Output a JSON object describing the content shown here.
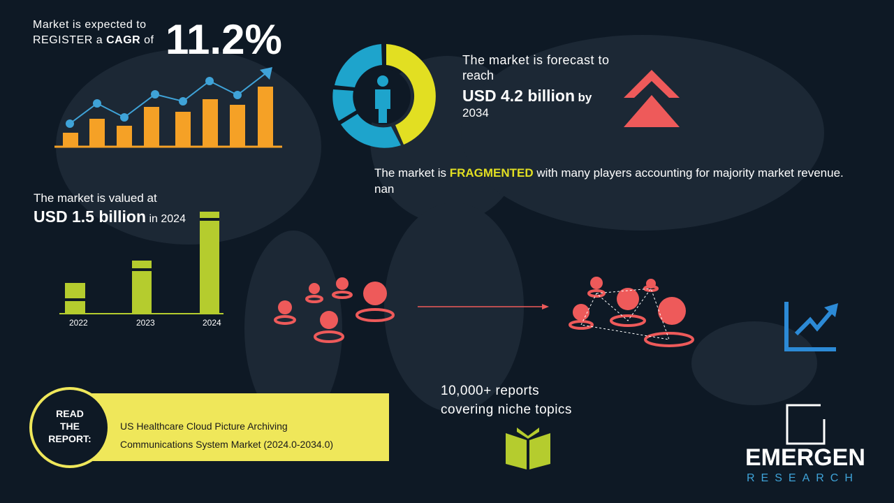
{
  "cagr": {
    "line1": "Market is expected to",
    "line2_a": "REGISTER a",
    "line2_b": "CAGR",
    "line2_c": "of",
    "value": "11.2%"
  },
  "forecast": {
    "line1": "The market is forecast to",
    "line2": "reach",
    "amount": "USD 4.2 billion",
    "by": "by",
    "year": "2034"
  },
  "fragmented": {
    "a": "The market is",
    "b": "FRAGMENTED",
    "c": "with many players accounting for majority market revenue. nan"
  },
  "valued": {
    "line1": "The market is valued at",
    "amount": "USD 1.5 billion",
    "year": "in 2024",
    "years": [
      "2022",
      "2023",
      "2024"
    ]
  },
  "report": {
    "read": "READ THE REPORT:",
    "title_line1": "US Healthcare Cloud Picture Archiving",
    "title_line2": "Communications System Market (2024.0-2034.0)"
  },
  "reports": {
    "line1": "10,000+ reports",
    "line2": "covering niche topics"
  },
  "logo": {
    "name": "EMERGEN",
    "sub": "RESEARCH"
  }
}
